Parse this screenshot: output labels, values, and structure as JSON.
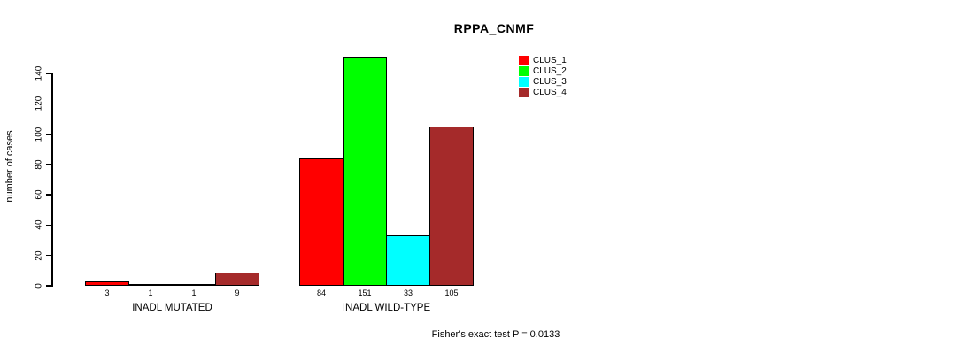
{
  "title": "RPPA_CNMF",
  "footer": "Fisher's exact test P = 0.0133",
  "colors": {
    "background": "#FFFFFF",
    "axis": "#000000",
    "clus_1": "#FF0000",
    "clus_2": "#00FF00",
    "clus_3": "#00FFFF",
    "clus_4": "#A52A2A"
  },
  "chart_data": {
    "type": "bar",
    "title": "RPPA_CNMF",
    "xlabel": "",
    "ylabel": "number of cases",
    "ylim": [
      0,
      140
    ],
    "yticks": [
      0,
      20,
      40,
      60,
      80,
      100,
      120,
      140
    ],
    "grid": false,
    "legend_position": "top-right",
    "categories": [
      "INADL MUTATED",
      "INADL WILD-TYPE"
    ],
    "series": [
      {
        "name": "CLUS_1",
        "color": "#FF0000",
        "values": [
          3,
          84
        ]
      },
      {
        "name": "CLUS_2",
        "color": "#00FF00",
        "values": [
          1,
          151
        ]
      },
      {
        "name": "CLUS_3",
        "color": "#00FFFF",
        "values": [
          1,
          33
        ]
      },
      {
        "name": "CLUS_4",
        "color": "#A52A2A",
        "values": [
          9,
          105
        ]
      }
    ],
    "bar_value_labels": [
      [
        "3",
        "1",
        "1",
        "9"
      ],
      [
        "84",
        "151",
        "33",
        "105"
      ]
    ],
    "annotation": "Fisher's exact test P = 0.0133"
  }
}
